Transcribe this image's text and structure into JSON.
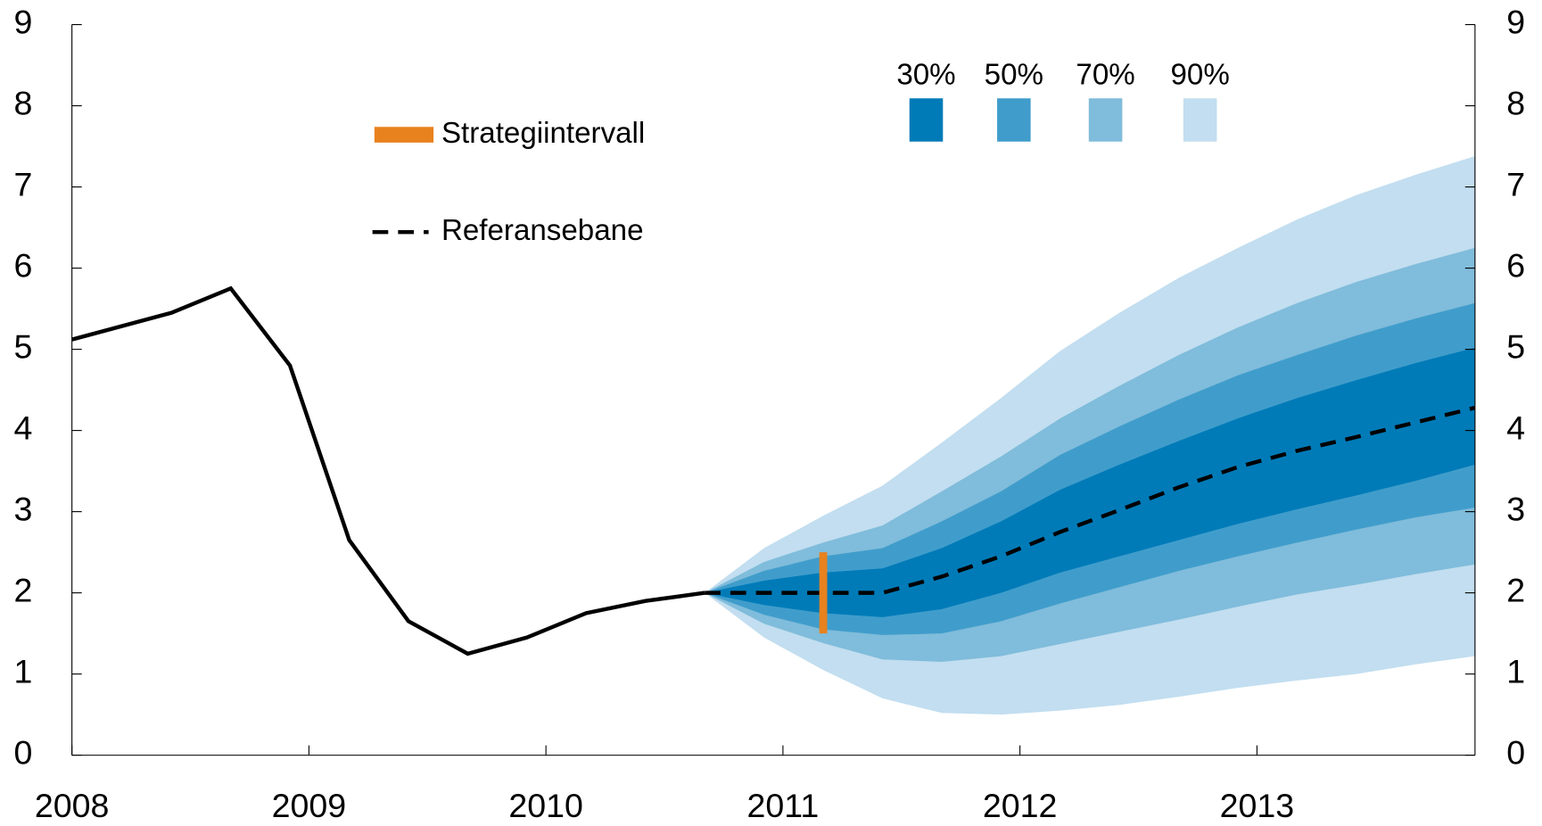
{
  "chart_data": {
    "type": "fan",
    "xlim": [
      2008,
      2013.92
    ],
    "xticks": [
      2008,
      2009,
      2010,
      2011,
      2012,
      2013
    ],
    "ylim": [
      0,
      9
    ],
    "yticks": [
      0,
      1,
      2,
      3,
      4,
      5,
      6,
      7,
      8,
      9
    ],
    "y2lim": [
      0,
      9
    ],
    "y2ticks": [
      0,
      1,
      2,
      3,
      4,
      5,
      6,
      7,
      8,
      9
    ],
    "history": {
      "color": "#000000",
      "x": [
        2008.0,
        2008.42,
        2008.67,
        2008.92,
        2009.17,
        2009.42,
        2009.67,
        2009.92,
        2010.17,
        2010.42,
        2010.67
      ],
      "values": [
        5.12,
        5.45,
        5.75,
        4.8,
        2.65,
        1.65,
        1.25,
        1.45,
        1.75,
        1.9,
        2.0
      ]
    },
    "forecast_x": [
      2010.67,
      2010.92,
      2011.17,
      2011.42,
      2011.67,
      2011.92,
      2012.17,
      2012.42,
      2012.67,
      2012.92,
      2013.17,
      2013.42,
      2013.67,
      2013.92
    ],
    "bands": [
      {
        "name": "90%",
        "color": "#c2def0",
        "upper": [
          2.0,
          2.55,
          2.95,
          3.32,
          3.85,
          4.4,
          4.98,
          5.45,
          5.88,
          6.25,
          6.6,
          6.9,
          7.15,
          7.38
        ],
        "lower": [
          2.0,
          1.45,
          1.05,
          0.7,
          0.52,
          0.5,
          0.55,
          0.62,
          0.72,
          0.83,
          0.92,
          1.0,
          1.12,
          1.22
        ]
      },
      {
        "name": "70%",
        "color": "#80bcdb",
        "upper": [
          2.0,
          2.38,
          2.62,
          2.83,
          3.25,
          3.68,
          4.15,
          4.55,
          4.93,
          5.27,
          5.57,
          5.83,
          6.05,
          6.25
        ],
        "lower": [
          2.0,
          1.62,
          1.38,
          1.18,
          1.15,
          1.22,
          1.37,
          1.52,
          1.67,
          1.83,
          1.98,
          2.1,
          2.23,
          2.35
        ]
      },
      {
        "name": "50%",
        "color": "#409dcb",
        "upper": [
          2.0,
          2.27,
          2.45,
          2.55,
          2.88,
          3.25,
          3.7,
          4.05,
          4.38,
          4.68,
          4.93,
          5.17,
          5.38,
          5.57
        ],
        "lower": [
          2.0,
          1.73,
          1.55,
          1.48,
          1.5,
          1.65,
          1.87,
          2.07,
          2.27,
          2.45,
          2.62,
          2.78,
          2.93,
          3.05
        ]
      },
      {
        "name": "30%",
        "color": "#007bb8",
        "upper": [
          2.0,
          2.15,
          2.25,
          2.3,
          2.55,
          2.88,
          3.27,
          3.58,
          3.87,
          4.15,
          4.4,
          4.62,
          4.83,
          5.02
        ],
        "lower": [
          2.0,
          1.85,
          1.75,
          1.7,
          1.8,
          2.0,
          2.25,
          2.45,
          2.65,
          2.85,
          3.03,
          3.2,
          3.38,
          3.58
        ]
      }
    ],
    "reference": {
      "name": "Referansebane",
      "color": "#000000",
      "values": [
        2.0,
        2.0,
        2.0,
        2.0,
        2.2,
        2.45,
        2.75,
        3.02,
        3.3,
        3.55,
        3.75,
        3.92,
        4.1,
        4.28
      ]
    },
    "strategy_interval": {
      "name": "Strategiintervall",
      "color": "#e8821e",
      "x": 2011.17,
      "low": 1.5,
      "high": 2.5
    }
  }
}
